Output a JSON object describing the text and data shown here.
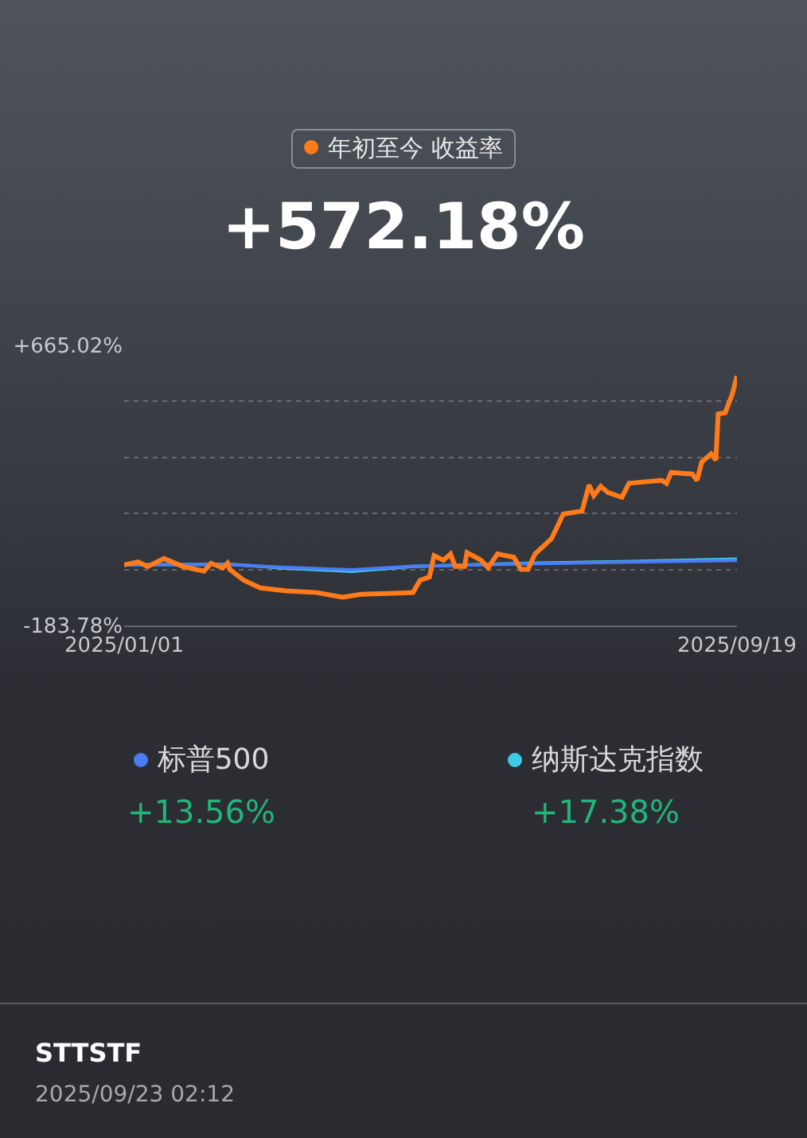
{
  "chart_data": {
    "type": "line",
    "grid": "y",
    "legend": "top",
    "line_style": "solid",
    "marker": "none",
    "xlim": [
      "2025-01-01",
      "2025-09-19"
    ],
    "xticks": [
      {
        "value": "2025-01-01",
        "label": "2025/01/01"
      },
      {
        "value": "2025-09-19",
        "label": "2025/09/19"
      }
    ],
    "ylim": [
      -183.78,
      665.02
    ],
    "yticks": [
      {
        "value": -183.78,
        "label": "-183.78%"
      },
      {
        "value": -14.02,
        "label": null
      },
      {
        "value": 155.74,
        "label": null
      },
      {
        "value": 325.5,
        "label": null
      },
      {
        "value": 495.26,
        "label": null
      },
      {
        "value": 665.02,
        "label": "+665.02%"
      }
    ],
    "series": [
      {
        "name": "年初至今 收益率",
        "color": "#ff7a1a",
        "x": [
          "2025-01-01",
          "2025-01-07",
          "2025-01-11",
          "2025-01-18",
          "2025-01-26",
          "2025-02-04",
          "2025-02-07",
          "2025-02-12",
          "2025-02-14",
          "2025-02-15",
          "2025-02-21",
          "2025-02-28",
          "2025-03-11",
          "2025-03-24",
          "2025-04-04",
          "2025-04-12",
          "2025-05-04",
          "2025-05-07",
          "2025-05-11",
          "2025-05-13",
          "2025-05-17",
          "2025-05-20",
          "2025-05-22",
          "2025-05-26",
          "2025-05-27",
          "2025-06-02",
          "2025-06-05",
          "2025-06-09",
          "2025-06-16",
          "2025-06-19",
          "2025-06-22",
          "2025-06-25",
          "2025-07-02",
          "2025-07-07",
          "2025-07-15",
          "2025-07-18",
          "2025-07-20",
          "2025-07-23",
          "2025-07-26",
          "2025-08-01",
          "2025-08-04",
          "2025-08-18",
          "2025-08-20",
          "2025-08-22",
          "2025-08-31",
          "2025-09-02",
          "2025-09-04",
          "2025-09-08",
          "2025-09-10",
          "2025-09-11",
          "2025-09-14",
          "2025-09-17",
          "2025-09-19"
        ],
        "values": [
          0,
          9,
          -5,
          19,
          -5,
          -19,
          5,
          -9,
          5,
          -14,
          -47,
          -70,
          -79,
          -84,
          -98,
          -89,
          -84,
          -47,
          -37,
          28,
          14,
          33,
          -5,
          -5,
          37,
          14,
          -9,
          33,
          23,
          -14,
          -14,
          33,
          79,
          154,
          163,
          242,
          210,
          238,
          219,
          205,
          247,
          256,
          247,
          280,
          275,
          256,
          312,
          336,
          317,
          457,
          461,
          517,
          572.18
        ]
      },
      {
        "name": "标普500",
        "color": "#4a7cf6",
        "x": [
          "2025-01-01",
          "2025-02-15",
          "2025-03-11",
          "2025-04-08",
          "2025-05-04",
          "2025-06-22",
          "2025-08-01",
          "2025-09-19"
        ],
        "values": [
          0,
          1,
          -8,
          -15,
          -4,
          3,
          8,
          13.56
        ]
      },
      {
        "name": "纳斯达克指数",
        "color": "#3fcbe6",
        "x": [
          "2025-01-01",
          "2025-02-15",
          "2025-03-11",
          "2025-04-08",
          "2025-05-04",
          "2025-06-22",
          "2025-08-01",
          "2025-09-19"
        ],
        "values": [
          0,
          2,
          -10,
          -20,
          -5,
          5,
          10,
          17.38
        ]
      }
    ],
    "annotations": [
      "+572.18%",
      "+13.56%",
      "+17.38%",
      "STTSTF",
      "2025/09/23 02:12"
    ]
  }
}
